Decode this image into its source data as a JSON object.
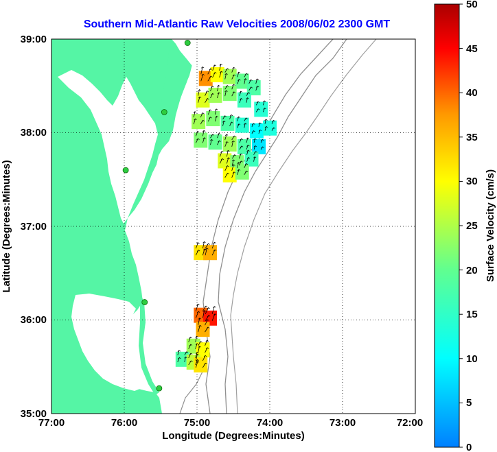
{
  "title": "Southern Mid-Atlantic Raw Velocities 2008/06/02 2300 GMT",
  "x_axis": {
    "label": "Longitude (Degrees:Minutes)",
    "ticks": [
      "77:00",
      "76:00",
      "75:00",
      "74:00",
      "73:00",
      "72:00"
    ]
  },
  "y_axis": {
    "label": "Latitude (Degrees:Minutes)",
    "ticks": [
      "39:00",
      "38:00",
      "37:00",
      "36:00",
      "35:00"
    ]
  },
  "colorbar": {
    "label": "Surface Velocity (cm/s)",
    "ticks": [
      "50",
      "45",
      "40",
      "35",
      "30",
      "25",
      "20",
      "15",
      "10",
      "5",
      "0"
    ],
    "min": 0,
    "max": 50
  },
  "colors": {
    "land": "#55f5a5",
    "title": "#0000ff",
    "bathymetry": "#909090",
    "station": "#2ecc40"
  },
  "chart_data": {
    "type": "heatmap",
    "lon_range": [
      -77,
      -72
    ],
    "lat_range": [
      35,
      39
    ],
    "grid": true,
    "units": "cm/s",
    "stations": [
      {
        "lon": -75.13,
        "lat": 38.96
      },
      {
        "lon": -75.45,
        "lat": 38.22
      },
      {
        "lon": -75.98,
        "lat": 37.6
      },
      {
        "lon": -75.72,
        "lat": 36.19
      },
      {
        "lon": -75.52,
        "lat": 35.27
      }
    ],
    "cells": [
      {
        "lon": -74.88,
        "lat": 38.58,
        "v": 38
      },
      {
        "lon": -74.72,
        "lat": 38.62,
        "v": 30
      },
      {
        "lon": -74.55,
        "lat": 38.6,
        "v": 24
      },
      {
        "lon": -74.38,
        "lat": 38.55,
        "v": 20
      },
      {
        "lon": -74.22,
        "lat": 38.48,
        "v": 18
      },
      {
        "lon": -74.92,
        "lat": 38.35,
        "v": 28
      },
      {
        "lon": -74.75,
        "lat": 38.4,
        "v": 24
      },
      {
        "lon": -74.55,
        "lat": 38.42,
        "v": 22
      },
      {
        "lon": -74.35,
        "lat": 38.35,
        "v": 16
      },
      {
        "lon": -74.12,
        "lat": 38.25,
        "v": 14
      },
      {
        "lon": -74.98,
        "lat": 38.12,
        "v": 24
      },
      {
        "lon": -74.78,
        "lat": 38.15,
        "v": 22
      },
      {
        "lon": -74.58,
        "lat": 38.1,
        "v": 18
      },
      {
        "lon": -74.38,
        "lat": 38.08,
        "v": 14
      },
      {
        "lon": -74.18,
        "lat": 38.02,
        "v": 10
      },
      {
        "lon": -74.0,
        "lat": 38.05,
        "v": 13
      },
      {
        "lon": -74.95,
        "lat": 37.92,
        "v": 22
      },
      {
        "lon": -74.75,
        "lat": 37.9,
        "v": 20
      },
      {
        "lon": -74.55,
        "lat": 37.88,
        "v": 24
      },
      {
        "lon": -74.35,
        "lat": 37.85,
        "v": 18
      },
      {
        "lon": -74.15,
        "lat": 37.85,
        "v": 8
      },
      {
        "lon": -74.62,
        "lat": 37.7,
        "v": 28
      },
      {
        "lon": -74.45,
        "lat": 37.68,
        "v": 22
      },
      {
        "lon": -74.25,
        "lat": 37.72,
        "v": 16
      },
      {
        "lon": -74.55,
        "lat": 37.55,
        "v": 30
      },
      {
        "lon": -74.38,
        "lat": 37.58,
        "v": 22
      },
      {
        "lon": -74.95,
        "lat": 36.72,
        "v": 32
      },
      {
        "lon": -74.82,
        "lat": 36.72,
        "v": 36
      },
      {
        "lon": -74.95,
        "lat": 36.05,
        "v": 40
      },
      {
        "lon": -74.82,
        "lat": 36.02,
        "v": 44
      },
      {
        "lon": -74.92,
        "lat": 35.9,
        "v": 36
      },
      {
        "lon": -75.05,
        "lat": 35.72,
        "v": 24
      },
      {
        "lon": -74.92,
        "lat": 35.68,
        "v": 30
      },
      {
        "lon": -75.2,
        "lat": 35.58,
        "v": 18
      },
      {
        "lon": -75.05,
        "lat": 35.55,
        "v": 26
      },
      {
        "lon": -74.95,
        "lat": 35.52,
        "v": 32
      }
    ]
  }
}
